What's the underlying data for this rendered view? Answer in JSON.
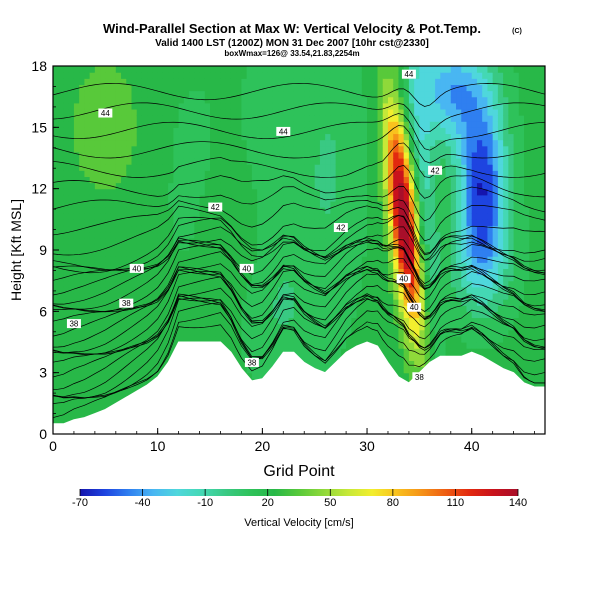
{
  "header": {
    "title": "Wind-Parallel Section at Max W: Vertical Velocity & Pot.Temp.",
    "title_mark": "(C)",
    "valid_line": "Valid 1400 LST (1200Z) MON 31 Dec 2007 [10hr cst@2330]",
    "box_line": "boxWmax=126@ 33.54,21.83,2254m"
  },
  "chart_data": {
    "type": "heatmap",
    "title": "Wind-Parallel Section at Max W: Vertical Velocity & Pot.Temp.",
    "xlabel": "Grid Point",
    "ylabel": "Height [Kft MSL]",
    "xlim": [
      0,
      47
    ],
    "ylim": [
      0,
      18
    ],
    "x_ticks": [
      0,
      10,
      20,
      30,
      40
    ],
    "y_ticks": [
      0,
      3,
      6,
      9,
      12,
      15,
      18
    ],
    "grid": false,
    "colorbar": {
      "label": "Vertical Velocity [cm/s]",
      "tick_labels": [
        "-70",
        "-40",
        "-10",
        "20",
        "50",
        "80",
        "110",
        "140"
      ],
      "tick_values": [
        -70,
        -40,
        -10,
        20,
        50,
        80,
        110,
        140
      ],
      "range": [
        -70,
        140
      ],
      "colors": [
        "#1515ad",
        "#1e44e0",
        "#2f7ff0",
        "#49b6f2",
        "#4fd7dc",
        "#44d8b4",
        "#39c983",
        "#2ec25a",
        "#28b848",
        "#58c93a",
        "#8fd93a",
        "#c6e838",
        "#f2ee2e",
        "#f9c21e",
        "#f59418",
        "#ee5f13",
        "#e2290f",
        "#c9121c",
        "#a80f2a"
      ]
    },
    "contour_labels": [
      {
        "x": 5,
        "y": 15.7,
        "text": "44"
      },
      {
        "x": 22,
        "y": 14.8,
        "text": "44"
      },
      {
        "x": 34,
        "y": 17.6,
        "text": "44"
      },
      {
        "x": 15.5,
        "y": 11.1,
        "text": "42"
      },
      {
        "x": 27.5,
        "y": 10.1,
        "text": "42"
      },
      {
        "x": 36.5,
        "y": 12.9,
        "text": "42"
      },
      {
        "x": 8,
        "y": 8.1,
        "text": "40"
      },
      {
        "x": 18.5,
        "y": 8.1,
        "text": "40"
      },
      {
        "x": 33.5,
        "y": 7.6,
        "text": "40"
      },
      {
        "x": 34.5,
        "y": 6.2,
        "text": "40"
      },
      {
        "x": 7,
        "y": 6.4,
        "text": "38"
      },
      {
        "x": 2,
        "y": 5.4,
        "text": "38"
      },
      {
        "x": 19,
        "y": 3.5,
        "text": "38"
      },
      {
        "x": 35,
        "y": 2.8,
        "text": "38"
      }
    ],
    "terrain_top_kft": [
      0.5,
      0.5,
      0.7,
      0.8,
      1.0,
      1.2,
      1.5,
      1.8,
      2.1,
      2.4,
      2.8,
      3.5,
      4.5,
      4.5,
      4.5,
      4.5,
      4.5,
      4.0,
      3.2,
      2.6,
      2.7,
      3.3,
      4.0,
      4.0,
      3.5,
      3.2,
      3.0,
      3.5,
      4.0,
      4.3,
      4.5,
      4.3,
      3.5,
      2.8,
      2.5,
      3.0,
      3.5,
      3.8,
      3.8,
      3.8,
      4.0,
      3.8,
      3.5,
      3.2,
      3.0,
      2.5,
      2.3,
      2.3
    ]
  }
}
